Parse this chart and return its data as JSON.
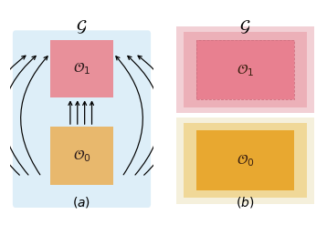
{
  "fig_width": 3.58,
  "fig_height": 2.58,
  "panel_a": {
    "bg_color": "#ddeef8",
    "box1_facecolor": "#e8909a",
    "box0_facecolor": "#e8b86d",
    "box1_label": "$\\mathcal{O}_1$",
    "box0_label": "$\\mathcal{O}_0$"
  },
  "panel_b": {
    "o1_layers": [
      {
        "color": "#f2d0d5"
      },
      {
        "color": "#ecb0b8"
      },
      {
        "color": "#e88090"
      }
    ],
    "o0_layers": [
      {
        "color": "#f5f0dc"
      },
      {
        "color": "#f0d898"
      },
      {
        "color": "#e8a830"
      }
    ],
    "box1_label": "$\\mathcal{O}_1$",
    "box0_label": "$\\mathcal{O}_0$"
  }
}
